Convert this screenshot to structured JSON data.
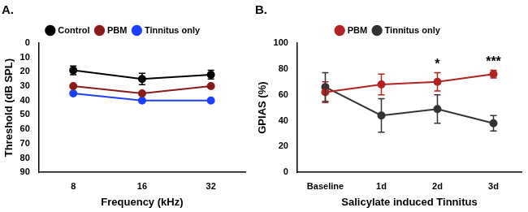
{
  "chart_data": [
    {
      "type": "line",
      "title": "A.",
      "x_label": "Frequency (kHz)",
      "y_label": "Threshold (dB SPL)",
      "categories": [
        "8",
        "16",
        "32"
      ],
      "series": [
        {
          "name": "Control",
          "color": "#000000",
          "values": [
            19,
            25,
            22
          ],
          "error": [
            3,
            4,
            3
          ]
        },
        {
          "name": "PBM",
          "color": "#8b1a1a",
          "values": [
            30,
            35,
            30
          ]
        },
        {
          "name": "Tinnitus only",
          "color": "#1f3fff",
          "values": [
            35,
            40,
            40
          ]
        }
      ],
      "ylim": [
        90,
        0
      ],
      "yticks": [
        0,
        10,
        20,
        30,
        40,
        50,
        60,
        70,
        80,
        90
      ],
      "grid": false,
      "legend": "top",
      "marker": "circle",
      "line_style": "solid"
    },
    {
      "type": "line",
      "title": "B.",
      "x_label": "Salicylate induced Tinnitus",
      "y_label": "GPIAS (%)",
      "categories": [
        "Baseline",
        "1d",
        "2d",
        "3d"
      ],
      "series": [
        {
          "name": "PBM",
          "color": "#b22222",
          "values": [
            62,
            68,
            70,
            76
          ],
          "error": [
            8,
            8,
            7,
            3
          ]
        },
        {
          "name": "Tinnitus only",
          "color": "#333333",
          "values": [
            66,
            44,
            49,
            38
          ],
          "error": [
            11,
            13,
            11,
            6
          ]
        }
      ],
      "ylim": [
        0,
        100
      ],
      "yticks": [
        0,
        20,
        40,
        60,
        80,
        100
      ],
      "annotations": [
        {
          "text": "*",
          "category": "2d"
        },
        {
          "text": "***",
          "category": "3d"
        }
      ],
      "grid": false,
      "legend": "top",
      "marker": "circle",
      "line_style": "solid"
    }
  ]
}
